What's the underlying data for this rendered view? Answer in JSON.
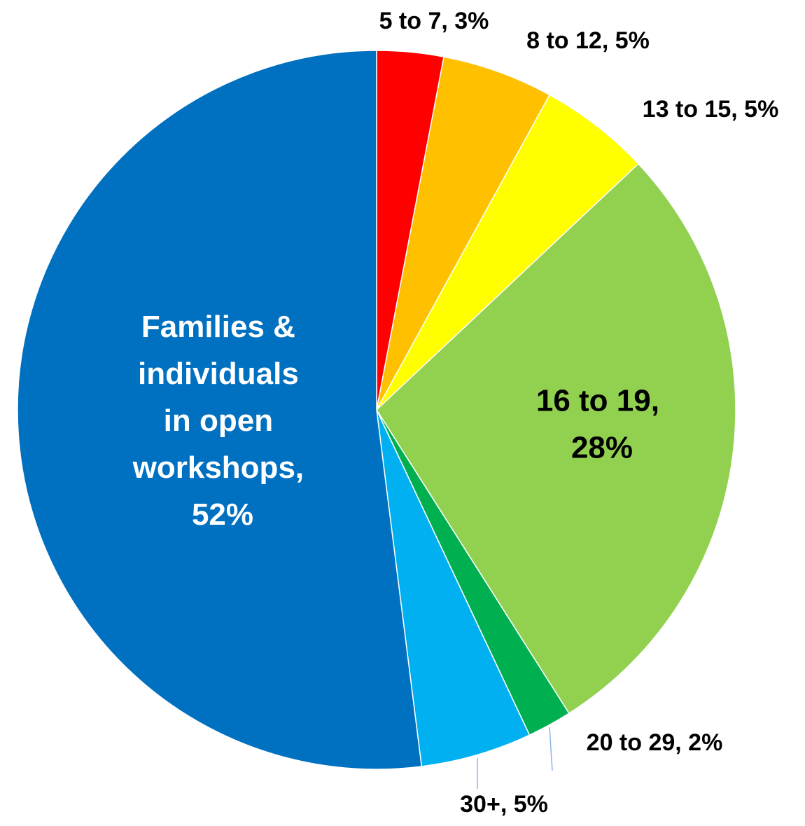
{
  "chart_data": {
    "type": "pie",
    "values": [
      3,
      5,
      5,
      28,
      2,
      5,
      52
    ],
    "value_labels": [
      "5 to 7, 3%",
      "8 to 12, 5%",
      "13 to 15, 5%",
      "16 to 19, 28%",
      "20 to 29, 2%",
      "30+, 5%",
      "Families & individuals in open workshops, 52%"
    ],
    "colors": [
      "#ff0000",
      "#ffc000",
      "#ffff00",
      "#92d050",
      "#00b050",
      "#00b0f0",
      "#0070c0"
    ]
  }
}
